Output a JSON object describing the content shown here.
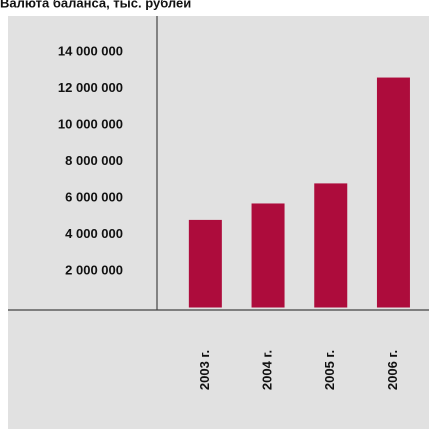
{
  "chart_data": {
    "type": "bar",
    "title": "Валюта баланса, тыс. рублей",
    "categories": [
      "2003 г.",
      "2004 г.",
      "2005 г.",
      "2006 г."
    ],
    "values": [
      4800000,
      5700000,
      6800000,
      12600000
    ],
    "color": "#ad0c3c",
    "ylim": [
      0,
      16000000
    ],
    "yticks": [
      {
        "value": 2000000,
        "label": "2 000 000"
      },
      {
        "value": 4000000,
        "label": "4 000 000"
      },
      {
        "value": 6000000,
        "label": "6 000 000"
      },
      {
        "value": 8000000,
        "label": "8 000 000"
      },
      {
        "value": 10000000,
        "label": "10 000 000"
      },
      {
        "value": 12000000,
        "label": "12 000 000"
      },
      {
        "value": 14000000,
        "label": "14 000 000"
      }
    ],
    "grid": false
  }
}
